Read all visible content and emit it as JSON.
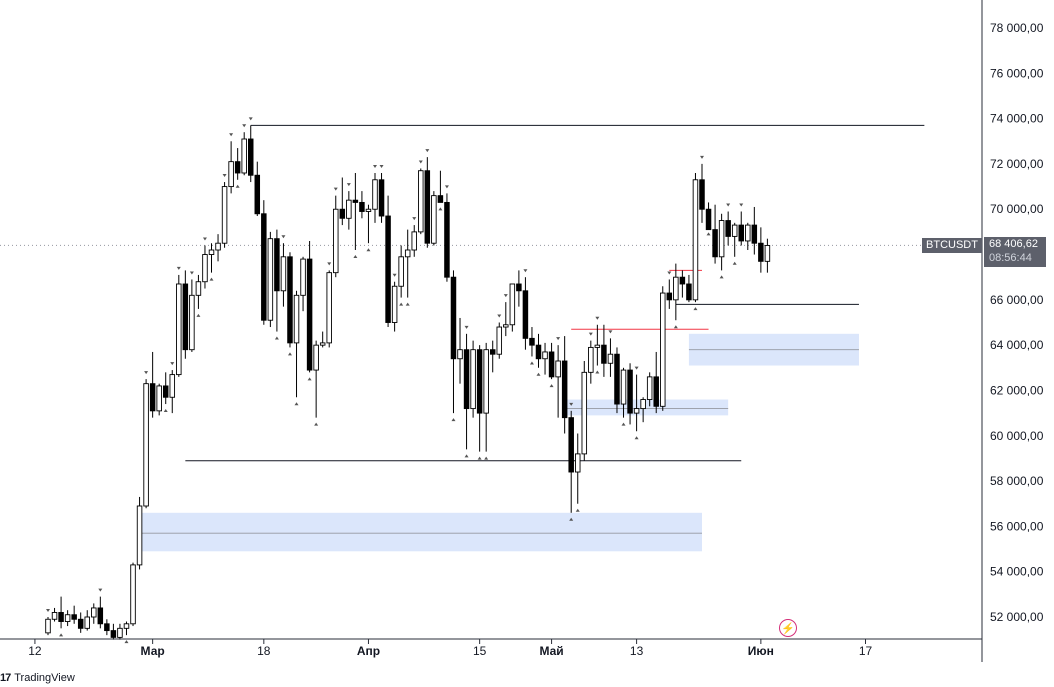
{
  "chart_data": {
    "type": "candlestick",
    "symbol": "BTCUSDT",
    "current_price": "68 406,62",
    "countdown": "08:56:44",
    "price_axis": {
      "ylim": [
        50500,
        79000
      ],
      "ticks": [
        "78 000,00",
        "76 000,00",
        "74 000,00",
        "72 000,00",
        "70 000,00",
        "68 000,00",
        "66 000,00",
        "64 000,00",
        "62 000,00",
        "60 000,00",
        "58 000,00",
        "56 000,00",
        "54 000,00",
        "52 000,00"
      ],
      "tick_values": [
        78000,
        76000,
        74000,
        72000,
        70000,
        68000,
        66000,
        64000,
        62000,
        60000,
        58000,
        56000,
        54000,
        52000
      ]
    },
    "time_axis": {
      "labels": [
        "12",
        "Мар",
        "18",
        "Апр",
        "15",
        "Май",
        "13",
        "Июн",
        "17"
      ],
      "label_days": [
        -2,
        16,
        33,
        49,
        66,
        77,
        90,
        109,
        125
      ],
      "bold": [
        false,
        true,
        false,
        true,
        false,
        true,
        false,
        true,
        false
      ]
    },
    "candles": [
      [
        51300,
        52000,
        51200,
        51900
      ],
      [
        51900,
        52400,
        51800,
        52200
      ],
      [
        52200,
        52900,
        51500,
        51800
      ],
      [
        51800,
        52300,
        51600,
        52100
      ],
      [
        52100,
        52500,
        51700,
        51900
      ],
      [
        51900,
        52200,
        51300,
        51500
      ],
      [
        51500,
        52300,
        51400,
        52000
      ],
      [
        52000,
        52600,
        51700,
        52400
      ],
      [
        52400,
        52900,
        51500,
        51700
      ],
      [
        51700,
        51900,
        51200,
        51400
      ],
      [
        51400,
        51700,
        51000,
        51100
      ],
      [
        51100,
        51700,
        51000,
        51500
      ],
      [
        51500,
        51800,
        51200,
        51700
      ],
      [
        51700,
        54400,
        51600,
        54300
      ],
      [
        54300,
        57300,
        54100,
        56900
      ],
      [
        56900,
        62500,
        56800,
        62300
      ],
      [
        62300,
        63700,
        60800,
        61100
      ],
      [
        61100,
        62300,
        60900,
        62200
      ],
      [
        62200,
        62800,
        61400,
        61700
      ],
      [
        61700,
        62900,
        61000,
        62700
      ],
      [
        62700,
        67100,
        62600,
        66700
      ],
      [
        66700,
        67300,
        63400,
        63800
      ],
      [
        63800,
        66900,
        63700,
        66200
      ],
      [
        66200,
        67100,
        65600,
        66800
      ],
      [
        66800,
        68400,
        66500,
        68000
      ],
      [
        68000,
        68500,
        67200,
        68200
      ],
      [
        68200,
        68900,
        67700,
        68500
      ],
      [
        68500,
        71200,
        68300,
        71000
      ],
      [
        71000,
        73000,
        70700,
        72100
      ],
      [
        72100,
        72700,
        71300,
        71600
      ],
      [
        71600,
        73400,
        71500,
        73100
      ],
      [
        73100,
        73700,
        71200,
        71500
      ],
      [
        71500,
        72100,
        69700,
        69800
      ],
      [
        69800,
        70400,
        64900,
        65100
      ],
      [
        65100,
        69000,
        64800,
        68700
      ],
      [
        68700,
        69100,
        64600,
        66400
      ],
      [
        66400,
        68500,
        65700,
        67900
      ],
      [
        67900,
        68100,
        63900,
        64100
      ],
      [
        64100,
        66400,
        61700,
        66200
      ],
      [
        66200,
        67900,
        65500,
        67800
      ],
      [
        67800,
        68600,
        62800,
        62900
      ],
      [
        62900,
        64200,
        60800,
        64000
      ],
      [
        64000,
        64600,
        63900,
        64100
      ],
      [
        64100,
        67300,
        63900,
        67200
      ],
      [
        67200,
        70600,
        67000,
        70000
      ],
      [
        70000,
        71400,
        69300,
        69600
      ],
      [
        69600,
        70800,
        69100,
        70400
      ],
      [
        70400,
        71600,
        68200,
        70300
      ],
      [
        70300,
        70800,
        69600,
        69900
      ],
      [
        69900,
        70200,
        68500,
        70000
      ],
      [
        70000,
        71600,
        69400,
        71300
      ],
      [
        71300,
        71600,
        69400,
        69700
      ],
      [
        69700,
        70600,
        64800,
        65000
      ],
      [
        65000,
        66800,
        64600,
        66600
      ],
      [
        66600,
        68400,
        66100,
        67900
      ],
      [
        67900,
        69100,
        66100,
        68200
      ],
      [
        68200,
        69300,
        67900,
        69000
      ],
      [
        69000,
        71800,
        68900,
        71700
      ],
      [
        71700,
        72300,
        68300,
        68500
      ],
      [
        68500,
        70800,
        68400,
        70600
      ],
      [
        70600,
        71700,
        70300,
        70300
      ],
      [
        70300,
        70700,
        66800,
        67000
      ],
      [
        67000,
        67300,
        61000,
        63400
      ],
      [
        63400,
        65200,
        62300,
        63800
      ],
      [
        63800,
        64500,
        59400,
        61200
      ],
      [
        61200,
        64200,
        60800,
        63800
      ],
      [
        63800,
        64000,
        59300,
        61000
      ],
      [
        61000,
        64100,
        59300,
        63800
      ],
      [
        63800,
        64200,
        62800,
        63600
      ],
      [
        63600,
        65000,
        63400,
        64800
      ],
      [
        64800,
        65900,
        64400,
        64900
      ],
      [
        64900,
        66700,
        64600,
        66700
      ],
      [
        66700,
        67300,
        65700,
        66400
      ],
      [
        66400,
        67000,
        63800,
        64300
      ],
      [
        64300,
        64800,
        63500,
        64000
      ],
      [
        64000,
        64500,
        63000,
        63400
      ],
      [
        63400,
        64100,
        62700,
        63700
      ],
      [
        63700,
        64100,
        62500,
        62600
      ],
      [
        62600,
        64000,
        60800,
        63300
      ],
      [
        63300,
        64400,
        60100,
        60800
      ],
      [
        60800,
        61100,
        56600,
        58400
      ],
      [
        58400,
        60100,
        57000,
        59200
      ],
      [
        59200,
        63300,
        58900,
        62800
      ],
      [
        62800,
        64200,
        62300,
        63900
      ],
      [
        63900,
        64900,
        63100,
        64000
      ],
      [
        64000,
        64900,
        62600,
        63200
      ],
      [
        63200,
        64300,
        62600,
        63600
      ],
      [
        63600,
        63900,
        61000,
        61400
      ],
      [
        61400,
        63000,
        60800,
        62900
      ],
      [
        62900,
        63200,
        60500,
        61000
      ],
      [
        61000,
        62700,
        60200,
        61200
      ],
      [
        61200,
        61700,
        60600,
        61600
      ],
      [
        61600,
        62800,
        61300,
        62600
      ],
      [
        62600,
        63700,
        61000,
        61300
      ],
      [
        61300,
        66600,
        61100,
        66300
      ],
      [
        66300,
        66900,
        65600,
        66000
      ],
      [
        66000,
        67600,
        65100,
        67000
      ],
      [
        67000,
        67300,
        66100,
        66700
      ],
      [
        66700,
        67100,
        65900,
        66000
      ],
      [
        66000,
        71600,
        65900,
        71300
      ],
      [
        71300,
        72000,
        69400,
        70000
      ],
      [
        70000,
        70300,
        69200,
        69100
      ],
      [
        69100,
        70200,
        67600,
        67900
      ],
      [
        67900,
        69800,
        67300,
        69500
      ],
      [
        69500,
        69900,
        68400,
        68800
      ],
      [
        68800,
        69400,
        67900,
        69300
      ],
      [
        69300,
        69900,
        68400,
        68600
      ],
      [
        68600,
        69400,
        68200,
        69300
      ],
      [
        69300,
        70100,
        68000,
        68500
      ],
      [
        68500,
        69200,
        67200,
        67700
      ],
      [
        67700,
        68700,
        67200,
        68400
      ]
    ],
    "markers": {
      "down_above_high": [
        0,
        8,
        15,
        19,
        20,
        22,
        24,
        27,
        28,
        30,
        31,
        36,
        43,
        44,
        46,
        50,
        51,
        53,
        56,
        57,
        58,
        61,
        64,
        69,
        70,
        73,
        78,
        80,
        83,
        84,
        86,
        90,
        95,
        100,
        104,
        106
      ],
      "up_below_low": [
        2,
        12,
        18,
        23,
        25,
        29,
        35,
        37,
        38,
        40,
        41,
        47,
        49,
        54,
        55,
        60,
        62,
        64,
        66,
        67,
        74,
        75,
        77,
        80,
        81,
        84,
        88,
        90,
        96,
        99,
        101,
        103,
        105
      ]
    },
    "levels": [
      {
        "price": 73700,
        "from": 31,
        "to": 134,
        "color": "#131722"
      },
      {
        "price": 58900,
        "from": 21,
        "to": 106,
        "color": "#131722"
      },
      {
        "price": 65800,
        "from": 96,
        "to": 124,
        "color": "#131722"
      },
      {
        "price": 64700,
        "from": 80,
        "to": 101,
        "color": "#f23645"
      },
      {
        "price": 67300,
        "from": 95,
        "to": 100,
        "color": "#f23645"
      }
    ],
    "zones": [
      {
        "top": 56600,
        "bottom": 54900,
        "mid": 55700,
        "from": 14,
        "to": 100
      },
      {
        "top": 64500,
        "bottom": 63100,
        "mid": 63800,
        "from": 98,
        "to": 124
      },
      {
        "top": 61600,
        "bottom": 60900,
        "mid": 61200,
        "from": 79,
        "to": 104
      }
    ],
    "start_day": 0,
    "colors": {
      "up": "#ffffff",
      "down": "#000000",
      "outline": "#000000",
      "zone": "#dbe6fb",
      "accent": "#d42f79"
    }
  },
  "header": {
    "symbol_label": "BTCUSDT"
  },
  "price_tag": {
    "price": "68 406,62",
    "countdown": "08:56:44"
  },
  "footer": {
    "brand": "TradingView",
    "logo": "17"
  },
  "icons": {
    "flash": "flash-icon"
  }
}
